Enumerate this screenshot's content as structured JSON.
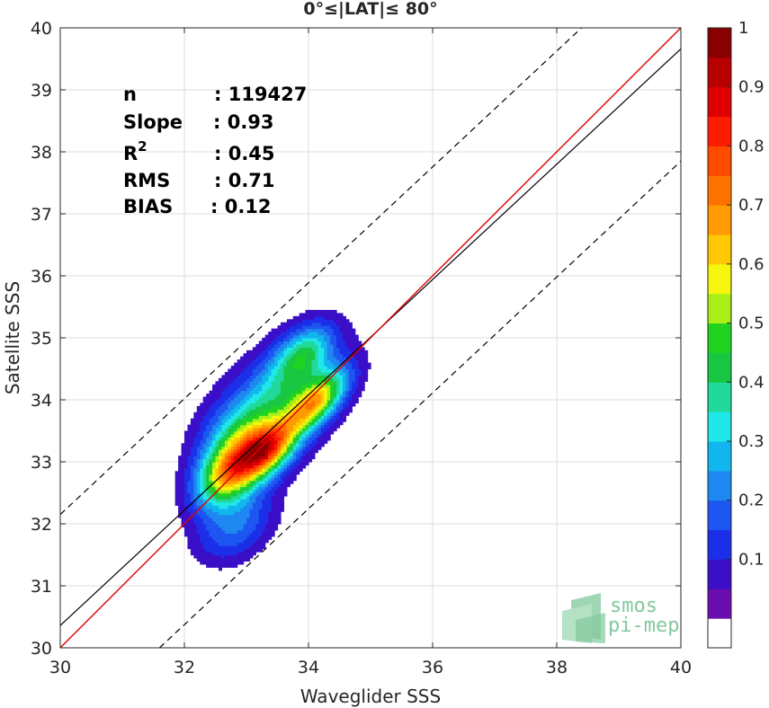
{
  "chart_data": {
    "type": "contour-scatter",
    "title": "0°≤|LAT|≤ 80°",
    "xlabel": "Waveglider SSS",
    "ylabel": "Satellite SSS",
    "xlim": [
      30,
      40
    ],
    "ylim": [
      30,
      40
    ],
    "xticks": [
      30,
      32,
      34,
      36,
      38,
      40
    ],
    "yticks": [
      30,
      31,
      32,
      33,
      34,
      35,
      36,
      37,
      38,
      39,
      40
    ],
    "grid": true,
    "stats": [
      {
        "label": "n",
        "value": ": 119427"
      },
      {
        "label": "Slope",
        "value": ": 0.93"
      },
      {
        "label": "R",
        "sup": "2",
        "value": ": 0.45"
      },
      {
        "label": "RMS",
        "value": ": 0.71"
      },
      {
        "label": "BIAS",
        "value": ": 0.12"
      }
    ],
    "lines": {
      "identity": {
        "x": [
          30,
          40
        ],
        "y": [
          30,
          40
        ],
        "color": "#e00000"
      },
      "regression": {
        "x": [
          30,
          40
        ],
        "y": [
          30.36,
          39.66
        ],
        "color": "#000000"
      },
      "upper_bound": {
        "x": [
          30,
          38.4
        ],
        "y": [
          32.15,
          40
        ],
        "color": "#000000",
        "dash": true
      },
      "lower_bound": {
        "x": [
          31.6,
          40
        ],
        "y": [
          30,
          37.85
        ],
        "color": "#000000",
        "dash": true
      }
    },
    "density_centers": [
      {
        "x": 32.75,
        "y": 32.85,
        "level": 0.98
      },
      {
        "x": 34.1,
        "y": 33.9,
        "level": 0.95
      },
      {
        "x": 33.35,
        "y": 33.2,
        "level": 0.85
      },
      {
        "x": 34.0,
        "y": 34.8,
        "level": 0.5
      },
      {
        "x": 32.75,
        "y": 31.7,
        "level": 0.25
      }
    ],
    "colorbar": {
      "min": 0,
      "max": 1,
      "ticks": [
        "0.1",
        "0.2",
        "0.3",
        "0.4",
        "0.5",
        "0.6",
        "0.7",
        "0.8",
        "0.9",
        "1"
      ],
      "colors": [
        "#ffffff",
        "#6a0dad",
        "#3b0fc7",
        "#1c2fe8",
        "#1d56f0",
        "#1e88f0",
        "#12b6ee",
        "#20e8e8",
        "#21d99a",
        "#19c742",
        "#21d321",
        "#a8ef18",
        "#f6f60c",
        "#ffc800",
        "#ff9a00",
        "#ff7200",
        "#ff4a00",
        "#ff1c00",
        "#e00000",
        "#b80000",
        "#8a0000"
      ]
    }
  },
  "watermark": {
    "line1": "smos",
    "line2": "pi-mep"
  }
}
